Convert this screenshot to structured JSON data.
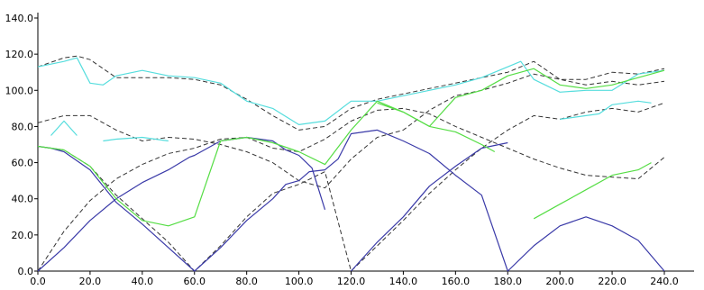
{
  "chart_data": {
    "type": "line",
    "title": "",
    "xlabel": "",
    "ylabel": "",
    "xlim": [
      0,
      240
    ],
    "ylim": [
      0,
      140
    ],
    "grid": false,
    "x_ticks": [
      "0.0",
      "20.0",
      "40.0",
      "60.0",
      "80.0",
      "100.0",
      "120.0",
      "140.0",
      "160.0",
      "180.0",
      "200.0",
      "220.0",
      "240.0"
    ],
    "y_ticks": [
      "0.0",
      "20.0",
      "40.0",
      "60.0",
      "80.0",
      "100.0",
      "120.0",
      "140.0"
    ],
    "colors": {
      "blue": "#3a3aa8",
      "green": "#55dd44",
      "cyan": "#55dddd",
      "dash": "#333333"
    },
    "series": [
      {
        "color": "blue",
        "style": "solid",
        "x": [
          0,
          10,
          20,
          30,
          40,
          50,
          58,
          60,
          70,
          80,
          90,
          95,
          100,
          105,
          110
        ],
        "y": [
          0,
          13,
          28,
          40,
          49,
          56,
          63,
          64,
          72,
          74,
          72,
          67,
          64,
          57,
          34
        ]
      },
      {
        "color": "blue",
        "style": "solid",
        "x": [
          0,
          5,
          10,
          20,
          30,
          40,
          50,
          60,
          70,
          80,
          90,
          95,
          100,
          104,
          110,
          115,
          120,
          130,
          140,
          150,
          160,
          170,
          180,
          190,
          200,
          210,
          220,
          230,
          240
        ],
        "y": [
          69,
          68,
          66,
          56,
          38,
          26,
          13,
          0,
          13,
          28,
          40,
          48,
          50,
          55,
          56,
          62,
          76,
          78,
          72,
          65,
          53,
          42,
          0,
          14,
          25,
          30,
          25,
          17,
          0
        ]
      },
      {
        "color": "blue",
        "style": "solid",
        "x": [
          120,
          130,
          140,
          150,
          160,
          170,
          180
        ],
        "y": [
          0,
          16,
          30,
          47,
          58,
          68,
          71
        ]
      },
      {
        "color": "cyan",
        "style": "solid",
        "x": [
          0,
          10,
          15,
          20,
          25,
          30,
          40,
          50,
          60,
          70,
          80,
          90,
          100,
          110,
          120,
          130,
          140,
          150,
          160,
          170,
          180,
          185,
          190,
          200,
          210,
          220,
          230,
          240
        ],
        "y": [
          113,
          116,
          118,
          104,
          103,
          108,
          111,
          108,
          107,
          104,
          94,
          90,
          81,
          83,
          94,
          94,
          97,
          100,
          103,
          107,
          113,
          116,
          106,
          99,
          100,
          100,
          109,
          111
        ]
      },
      {
        "color": "cyan",
        "style": "solid",
        "x": [
          5,
          10,
          15
        ],
        "y": [
          75,
          83,
          75
        ]
      },
      {
        "color": "cyan",
        "style": "solid",
        "x": [
          25,
          30,
          40,
          50
        ],
        "y": [
          72,
          73,
          74,
          72
        ]
      },
      {
        "color": "cyan",
        "style": "solid",
        "x": [
          200,
          210,
          215,
          220,
          230,
          235
        ],
        "y": [
          84,
          86,
          87,
          92,
          94,
          93
        ]
      },
      {
        "color": "green",
        "style": "solid",
        "x": [
          0,
          10,
          20,
          30,
          40,
          50,
          60,
          70,
          80,
          90,
          100,
          110,
          120,
          130,
          140,
          150,
          160,
          170,
          180,
          190,
          200,
          210,
          220,
          230,
          240
        ],
        "y": [
          69,
          67,
          58,
          40,
          28,
          25,
          30,
          72,
          74,
          71,
          66,
          59,
          78,
          94,
          88,
          80,
          96,
          100,
          108,
          112,
          103,
          101,
          103,
          107,
          111
        ]
      },
      {
        "color": "green",
        "style": "solid",
        "x": [
          130,
          140,
          150,
          160,
          170,
          175
        ],
        "y": [
          93,
          88,
          80,
          77,
          70,
          66
        ]
      },
      {
        "color": "green",
        "style": "solid",
        "x": [
          190,
          200,
          210,
          220,
          230,
          235
        ],
        "y": [
          29,
          37,
          45,
          53,
          56,
          60
        ]
      },
      {
        "color": "dash",
        "style": "dashed",
        "x": [
          0,
          10,
          15,
          20,
          30,
          40,
          50,
          60,
          70,
          80,
          90,
          100,
          110,
          120,
          130,
          140,
          150,
          160,
          170,
          180,
          190,
          200,
          210,
          220,
          230,
          240
        ],
        "y": [
          113,
          118,
          119,
          117,
          107,
          107,
          107,
          106,
          103,
          95,
          86,
          78,
          80,
          90,
          95,
          98,
          101,
          104,
          107,
          110,
          116,
          106,
          106,
          110,
          109,
          112
        ]
      },
      {
        "color": "dash",
        "style": "dashed",
        "x": [
          0,
          10,
          20,
          30,
          40,
          50,
          60,
          70,
          80,
          90,
          100,
          110,
          120,
          130,
          140,
          150,
          160,
          170,
          180,
          190,
          200,
          210,
          220,
          230,
          240
        ],
        "y": [
          82,
          86,
          86,
          78,
          72,
          74,
          73,
          70,
          66,
          60,
          50,
          46,
          62,
          74,
          78,
          89,
          97,
          100,
          104,
          109,
          106,
          103,
          105,
          103,
          105
        ]
      },
      {
        "color": "dash",
        "style": "dashed",
        "x": [
          0,
          10,
          20,
          30,
          40,
          50,
          60,
          70,
          80,
          90,
          100,
          110,
          120,
          130,
          140,
          150,
          160,
          170,
          180,
          190,
          200,
          210,
          220,
          230,
          240
        ],
        "y": [
          0,
          22,
          39,
          51,
          59,
          65,
          68,
          73,
          74,
          68,
          66,
          73,
          83,
          89,
          90,
          87,
          80,
          74,
          68,
          62,
          57,
          53,
          52,
          51,
          63
        ]
      },
      {
        "color": "dash",
        "style": "dashed",
        "x": [
          0,
          10,
          20,
          30,
          40,
          50,
          60,
          70,
          80,
          90,
          100,
          110,
          120,
          130,
          140,
          150,
          160,
          170,
          180,
          190,
          200,
          210,
          220,
          230,
          240
        ],
        "y": [
          69,
          67,
          58,
          42,
          29,
          16,
          0,
          14,
          30,
          43,
          48,
          55,
          0,
          14,
          28,
          43,
          56,
          68,
          78,
          86,
          84,
          88,
          90,
          88,
          93
        ]
      }
    ]
  }
}
